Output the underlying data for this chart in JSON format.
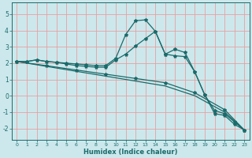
{
  "xlabel": "Humidex (Indice chaleur)",
  "xlim": [
    -0.5,
    23.5
  ],
  "ylim": [
    -2.7,
    5.7
  ],
  "yticks": [
    -2,
    -1,
    0,
    1,
    2,
    3,
    4,
    5
  ],
  "xticks": [
    0,
    1,
    2,
    3,
    4,
    5,
    6,
    7,
    8,
    9,
    10,
    11,
    12,
    13,
    14,
    15,
    16,
    17,
    18,
    19,
    20,
    21,
    22,
    23
  ],
  "bg_color": "#cce8ec",
  "grid_color": "#e8a0a0",
  "line_color": "#1a6b6b",
  "curve1_x": [
    0,
    1,
    2,
    3,
    4,
    5,
    6,
    7,
    8,
    9,
    10,
    11,
    12,
    13,
    14,
    15,
    16,
    17,
    18,
    19,
    20,
    21,
    22,
    23
  ],
  "curve1_y": [
    2.1,
    2.1,
    2.2,
    2.1,
    2.05,
    2.0,
    1.95,
    1.9,
    1.85,
    1.85,
    2.3,
    3.75,
    4.6,
    4.65,
    3.95,
    2.55,
    2.85,
    2.65,
    1.45,
    0.05,
    -1.1,
    -1.2,
    -1.75,
    -2.1
  ],
  "curve2_x": [
    0,
    1,
    2,
    3,
    4,
    5,
    6,
    7,
    8,
    9,
    10,
    11,
    12,
    13,
    14,
    15,
    16,
    17,
    18,
    19,
    20,
    21,
    22,
    23
  ],
  "curve2_y": [
    2.1,
    2.1,
    2.2,
    2.1,
    2.05,
    1.95,
    1.85,
    1.8,
    1.75,
    1.75,
    2.2,
    2.55,
    3.05,
    3.5,
    3.95,
    2.55,
    2.45,
    2.4,
    1.45,
    0.05,
    -0.9,
    -1.1,
    -1.6,
    -2.1
  ],
  "line1_x": [
    0,
    3,
    6,
    9,
    12,
    15,
    18,
    21,
    23
  ],
  "line1_y": [
    2.1,
    1.84,
    1.58,
    1.32,
    1.06,
    0.8,
    0.18,
    -0.85,
    -2.1
  ],
  "line2_x": [
    0,
    3,
    6,
    9,
    12,
    15,
    18,
    21,
    23
  ],
  "line2_y": [
    2.1,
    1.8,
    1.5,
    1.2,
    0.9,
    0.6,
    0.0,
    -1.0,
    -2.1
  ]
}
